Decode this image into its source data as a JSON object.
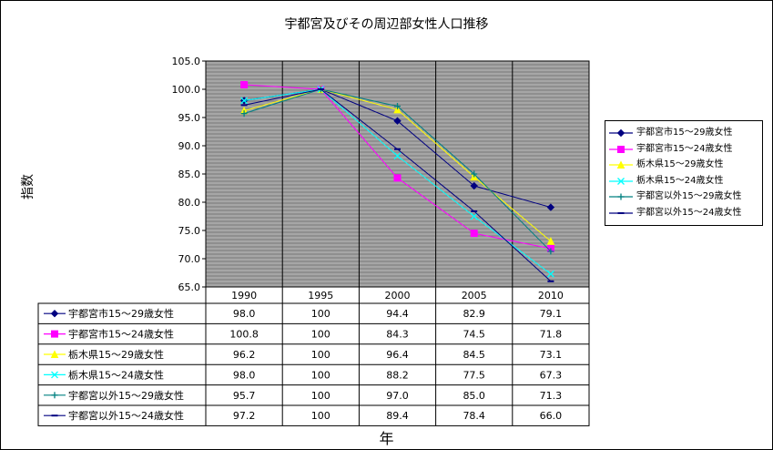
{
  "chart_data": {
    "type": "line",
    "title": "宇都宮及びその周辺部女性人口推移",
    "xlabel": "年",
    "ylabel": "指数",
    "x": [
      "1990",
      "1995",
      "2000",
      "2005",
      "2010"
    ],
    "ylim": [
      65.0,
      105.0
    ],
    "yticks": [
      "65.0",
      "70.0",
      "75.0",
      "80.0",
      "85.0",
      "90.0",
      "95.0",
      "100.0",
      "105.0"
    ],
    "legend_position": "right",
    "plot_background": "#a6a6a6",
    "series": [
      {
        "name": "宇都宮市15～29歳女性",
        "color": "#000080",
        "marker": "diamond",
        "values": [
          98.0,
          100,
          94.4,
          82.9,
          79.1
        ],
        "labels": [
          "98.0",
          "100",
          "94.4",
          "82.9",
          "79.1"
        ]
      },
      {
        "name": "宇都宮市15～24歳女性",
        "color": "#ff00ff",
        "marker": "square",
        "values": [
          100.8,
          100,
          84.3,
          74.5,
          71.8
        ],
        "labels": [
          "100.8",
          "100",
          "84.3",
          "74.5",
          "71.8"
        ]
      },
      {
        "name": "栃木県15～29歳女性",
        "color": "#ffff00",
        "marker": "triangle",
        "values": [
          96.2,
          100,
          96.4,
          84.5,
          73.1
        ],
        "labels": [
          "96.2",
          "100",
          "96.4",
          "84.5",
          "73.1"
        ]
      },
      {
        "name": "栃木県15～24歳女性",
        "color": "#00ffff",
        "marker": "x",
        "values": [
          98.0,
          100,
          88.2,
          77.5,
          67.3
        ],
        "labels": [
          "98.0",
          "100",
          "88.2",
          "77.5",
          "67.3"
        ]
      },
      {
        "name": "宇都宮以外15～29歳女性",
        "color": "#008080",
        "marker": "plus",
        "values": [
          95.7,
          100,
          97.0,
          85.0,
          71.3
        ],
        "labels": [
          "95.7",
          "100",
          "97.0",
          "85.0",
          "71.3"
        ]
      },
      {
        "name": "宇都宮以外15～24歳女性",
        "color": "#000080",
        "marker": "dash",
        "values": [
          97.2,
          100,
          89.4,
          78.4,
          66.0
        ],
        "labels": [
          "97.2",
          "100",
          "89.4",
          "78.4",
          "66.0"
        ]
      }
    ]
  }
}
